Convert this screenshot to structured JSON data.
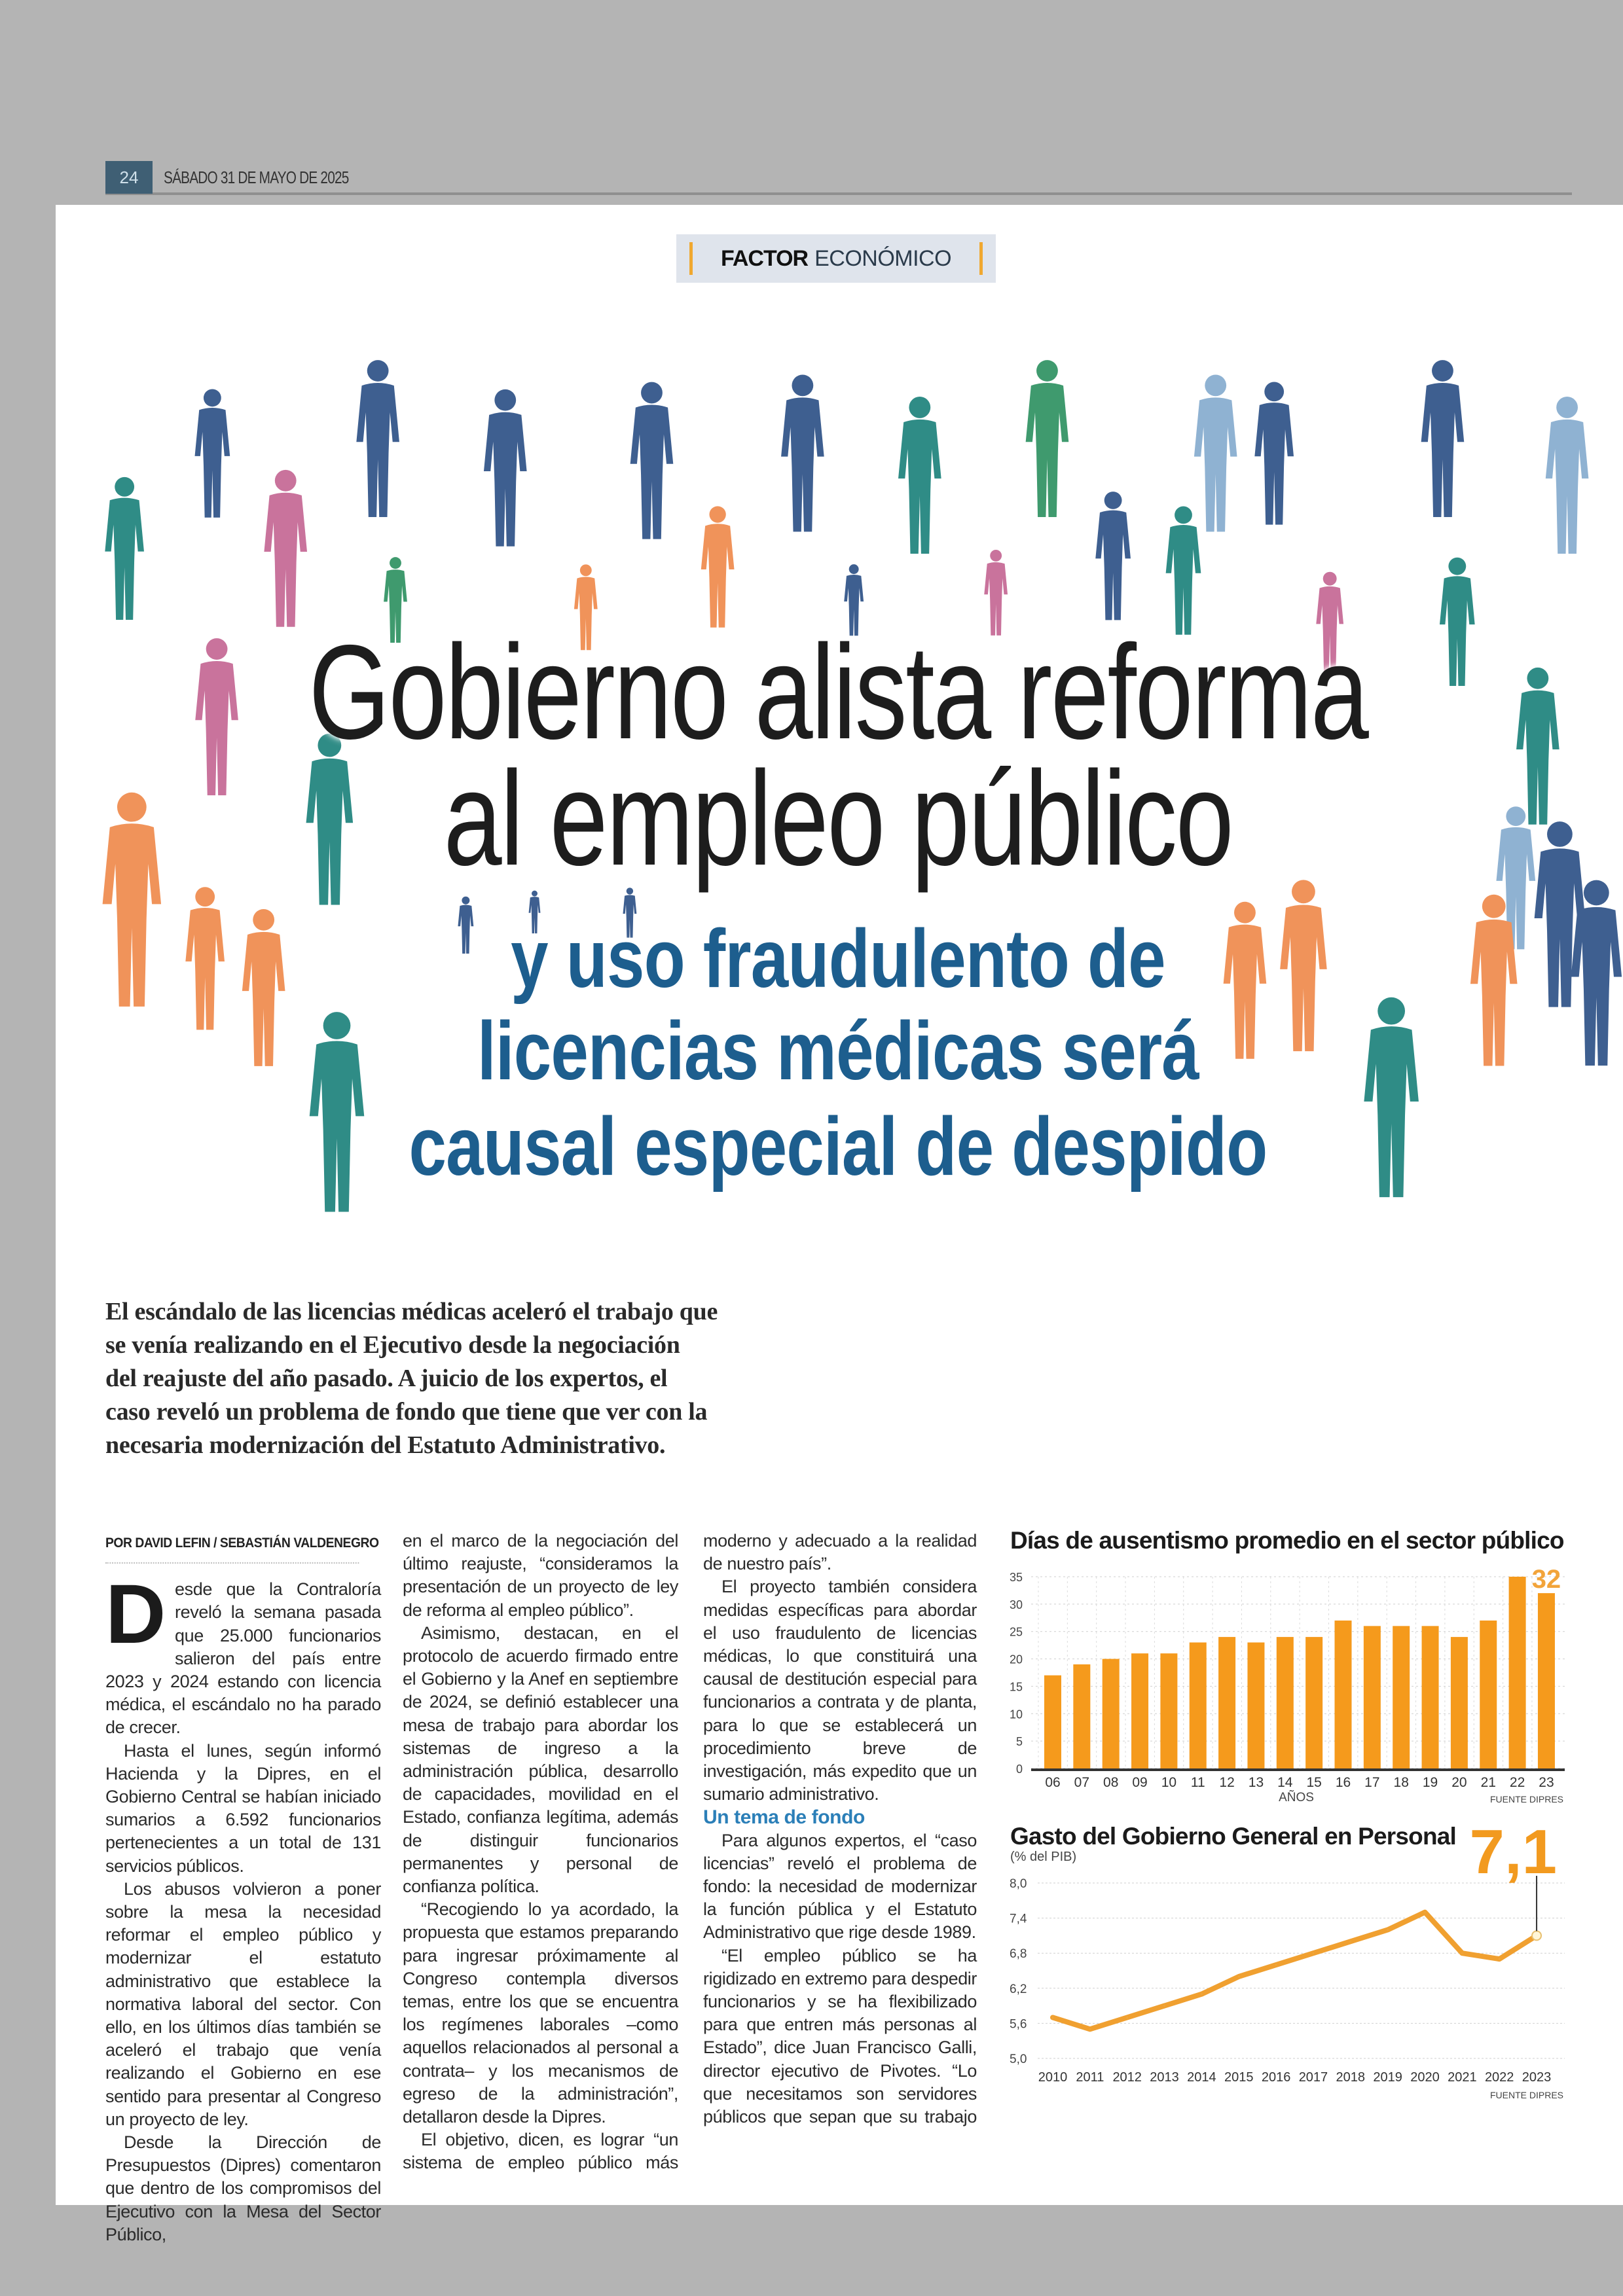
{
  "header": {
    "page_number": "24",
    "date": "SÁBADO 31 DE MAYO DE 2025"
  },
  "section": {
    "bold": "FACTOR",
    "light": "ECONÓMICO"
  },
  "headline": {
    "lines": [
      "Gobierno alista reforma",
      "al empleo público"
    ]
  },
  "subheadline": {
    "lines": [
      "y uso fraudulento de",
      "licencias médicas será",
      "causal especial de despido"
    ]
  },
  "lead": {
    "lines": [
      "El escándalo de las licencias médicas aceleró el trabajo que",
      "se venía realizando en el Ejecutivo desde la negociación",
      "del reajuste del año pasado. A juicio de los expertos, el",
      "caso reveló un problema de fondo que tiene que ver con la",
      "necesaria modernización del Estatuto Administrativo."
    ]
  },
  "article": {
    "byline": "POR DAVID LEFIN / SEBASTIÁN VALDENEGRO",
    "drop_cap": "D",
    "col1": [
      "esde que la Contraloría reveló la semana pasada que 25.000 funcionarios salieron del país entre 2023 y 2024 estando con licencia médica, el escándalo no ha parado de crecer.",
      "Hasta el lunes, según informó Hacienda y la Dipres, en el Gobierno Central se habían iniciado sumarios a 6.592 funcionarios pertenecientes a un total de 131 servicios públicos.",
      "Los abusos volvieron a poner sobre la mesa la necesidad reformar el empleo público y modernizar el estatuto administrativo que establece la normativa laboral del sector. Con ello, en los últimos días también se aceleró el trabajo que venía realizando el Gobierno en ese sentido para presentar al Congreso un proyecto de ley.",
      "Desde la Dirección de Presupuestos (Dipres) comentaron que dentro de los compromisos del Ejecutivo con la Mesa del Sector Público,"
    ],
    "col2": [
      "en el marco de la negociación del último reajuste, “consideramos la presentación de un proyecto de ley de reforma al empleo público”.",
      "Asimismo, destacan, en el protocolo de acuerdo firmado entre el Gobierno y la Anef en septiembre de 2024, se definió establecer una mesa de trabajo para abordar los sistemas de ingreso a la administración pública, desarrollo de capacidades, movilidad en el Estado, confianza legítima, además de distinguir funcionarios permanentes y personal de confianza política.",
      "“Recogiendo lo ya acordado, la propuesta que estamos preparando para ingresar próximamente al Congreso contempla diversos temas, entre los que se encuentra los regímenes laborales –como aquellos relacionados al personal a contrata– y los mecanismos de egreso de la administración”, detallaron desde la Dipres.",
      "El objetivo, dicen, es lograr “un sistema de empleo público más"
    ],
    "col3": [
      "moderno y adecuado a la realidad de nuestro país”.",
      "El proyecto también considera medidas específicas para abordar el uso fraudulento de licencias médicas, lo que constituirá una causal de destitución especial para funcionarios a contrata y de planta, para lo que se establecerá un procedimiento breve de investigación, más expedito que un sumario administrativo."
    ],
    "subhead": "Un tema de fondo",
    "col3b": [
      "Para algunos expertos, el “caso licencias” reveló el problema de fondo: la necesidad de modernizar la función pública y el Estatuto Administrativo que rige desde 1989.",
      "“El empleo público se ha rigidizado en extremo para despedir funcionarios y se ha flexibilizado para que entren más personas al Estado”, dice Juan Francisco Galli, director ejecutivo de Pivotes. “Lo que necesitamos son servidores públicos que sepan que su trabajo"
    ]
  },
  "colors": {
    "orange": "#f59a1c",
    "line": "#f0a030",
    "blue": "#1d5e8e",
    "accent_blue": "#2b7fb8"
  },
  "chart_data": [
    {
      "type": "bar",
      "title": "Días de ausentismo promedio en el sector público",
      "categories": [
        "06",
        "07",
        "08",
        "09",
        "10",
        "11",
        "12",
        "13",
        "14",
        "15",
        "16",
        "17",
        "18",
        "19",
        "20",
        "21",
        "22",
        "23"
      ],
      "values": [
        17,
        19,
        20,
        21,
        21,
        23,
        24,
        23,
        24,
        24,
        27,
        26,
        26,
        26,
        24,
        27,
        35,
        32
      ],
      "xlabel": "AÑOS",
      "ylabel": "",
      "ylim": [
        0,
        35
      ],
      "yticks": [
        0,
        5,
        10,
        15,
        20,
        25,
        30,
        35
      ],
      "highlight_label": "32",
      "source": "FUENTE DIPRES",
      "grid": true
    },
    {
      "type": "line",
      "title": "Gasto del Gobierno General en Personal",
      "subtitle": "(% del PIB)",
      "x": [
        "2010",
        "2011",
        "2012",
        "2013",
        "2014",
        "2015",
        "2016",
        "2017",
        "2018",
        "2019",
        "2020",
        "2021",
        "2022",
        "2023"
      ],
      "values": [
        5.7,
        5.5,
        5.7,
        5.9,
        6.1,
        6.4,
        6.6,
        6.8,
        7.0,
        7.2,
        7.5,
        6.8,
        6.7,
        7.1
      ],
      "ylim": [
        5.0,
        8.0
      ],
      "yticks": [
        "5,0",
        "5,6",
        "6,2",
        "6,8",
        "7,4",
        "8,0"
      ],
      "ytick_values": [
        5.0,
        5.6,
        6.2,
        6.8,
        7.4,
        8.0
      ],
      "highlight_label": "7,1",
      "source": "FUENTE DIPRES",
      "grid": true
    }
  ]
}
